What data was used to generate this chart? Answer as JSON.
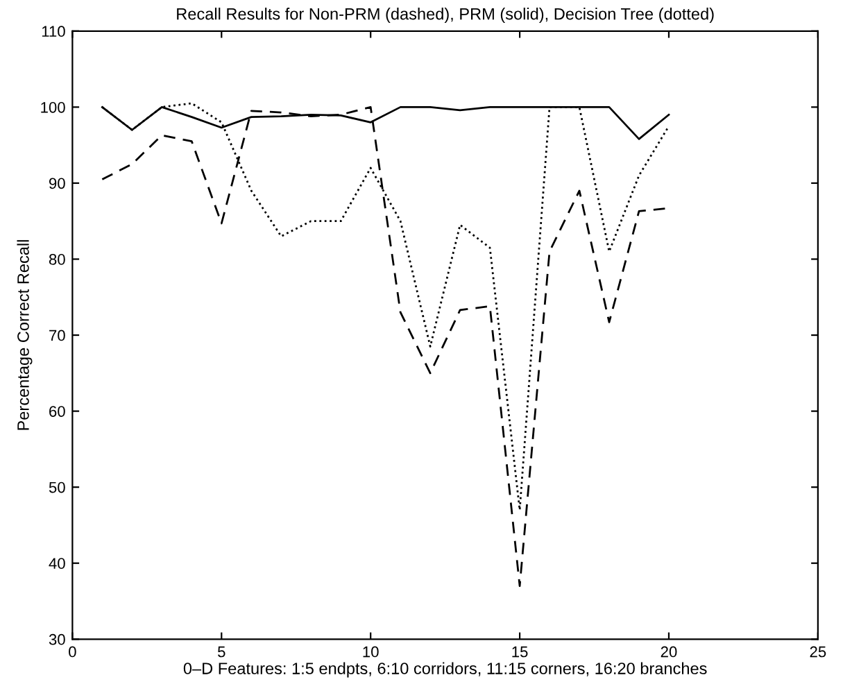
{
  "chart_data": {
    "type": "line",
    "title": "Recall Results for Non-PRM (dashed), PRM (solid), Decision Tree (dotted)",
    "xlabel": "0–D Features: 1:5 endpts, 6:10 corridors, 11:15 corners, 16:20 branches",
    "ylabel": "Percentage Correct Recall",
    "x": [
      1,
      2,
      3,
      4,
      5,
      6,
      7,
      8,
      9,
      10,
      11,
      12,
      13,
      14,
      15,
      16,
      17,
      18,
      19,
      20
    ],
    "xlim": [
      0,
      25
    ],
    "xticks": [
      0,
      5,
      10,
      15,
      20,
      25
    ],
    "ylim": [
      30,
      110
    ],
    "yticks": [
      30,
      40,
      50,
      60,
      70,
      80,
      90,
      100,
      110
    ],
    "grid": false,
    "legend": false,
    "series": [
      {
        "color": "#000000",
        "line_style": "dashed",
        "values": [
          90.5,
          92.5,
          96.3,
          95.5,
          84.7,
          99.5,
          99.3,
          98.8,
          99,
          100,
          73,
          65,
          73.3,
          73.8,
          37,
          81,
          89,
          71.7,
          86.3,
          86.7
        ]
      },
      {
        "color": "#000000",
        "line_style": "solid",
        "values": [
          100,
          97,
          100,
          98.7,
          97.3,
          98.7,
          98.8,
          99,
          98.9,
          98,
          100,
          100,
          99.6,
          100,
          100,
          100,
          100,
          100,
          95.8,
          99
        ]
      },
      {
        "color": "#000000",
        "line_style": "dotted",
        "values": [
          100,
          97,
          100,
          100.5,
          98,
          89,
          83,
          85,
          85,
          92,
          85,
          68.5,
          84.5,
          81.5,
          47,
          100,
          100,
          81,
          91,
          97.5
        ]
      }
    ]
  }
}
